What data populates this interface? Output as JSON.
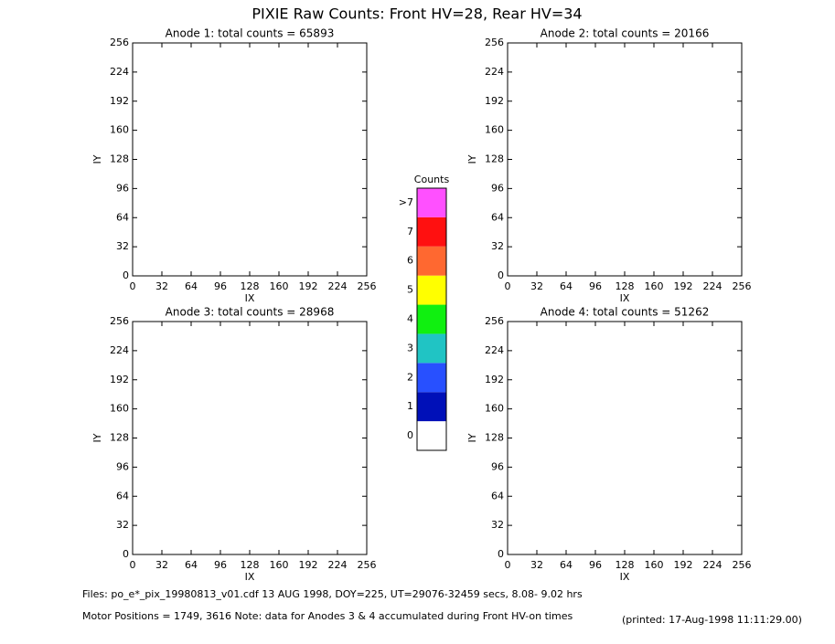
{
  "title": "PIXIE Raw Counts:  Front HV=28, Rear HV=34",
  "chart_data": [
    {
      "type": "heatmap",
      "title": "Anode 1: total counts = 65893",
      "xlabel": "IX",
      "ylabel": "IY",
      "xlim": [
        0,
        256
      ],
      "ylim": [
        0,
        256
      ],
      "xticks": [
        0,
        32,
        64,
        96,
        128,
        160,
        192,
        224,
        256
      ],
      "yticks": [
        0,
        32,
        64,
        96,
        128,
        160,
        192,
        224,
        256
      ]
    },
    {
      "type": "heatmap",
      "title": "Anode 2: total counts = 20166",
      "xlabel": "IX",
      "ylabel": "IY",
      "xlim": [
        0,
        256
      ],
      "ylim": [
        0,
        256
      ],
      "xticks": [
        0,
        32,
        64,
        96,
        128,
        160,
        192,
        224,
        256
      ],
      "yticks": [
        0,
        32,
        64,
        96,
        128,
        160,
        192,
        224,
        256
      ]
    },
    {
      "type": "heatmap",
      "title": "Anode 3: total counts = 28968",
      "xlabel": "IX",
      "ylabel": "IY",
      "xlim": [
        0,
        256
      ],
      "ylim": [
        0,
        256
      ],
      "xticks": [
        0,
        32,
        64,
        96,
        128,
        160,
        192,
        224,
        256
      ],
      "yticks": [
        0,
        32,
        64,
        96,
        128,
        160,
        192,
        224,
        256
      ]
    },
    {
      "type": "heatmap",
      "title": "Anode 4: total counts = 51262",
      "xlabel": "IX",
      "ylabel": "IY",
      "xlim": [
        0,
        256
      ],
      "ylim": [
        0,
        256
      ],
      "xticks": [
        0,
        32,
        64,
        96,
        128,
        160,
        192,
        224,
        256
      ],
      "yticks": [
        0,
        32,
        64,
        96,
        128,
        160,
        192,
        224,
        256
      ]
    }
  ],
  "colorbar": {
    "title": "Counts",
    "labels": [
      "0",
      "1",
      "2",
      "3",
      "4",
      "5",
      "6",
      "7",
      ">7"
    ],
    "colors": [
      "#ffffff",
      "#0010b8",
      "#2850ff",
      "#20c4c4",
      "#10f010",
      "#ffff00",
      "#ff6830",
      "#ff1010",
      "#ff50ff"
    ]
  },
  "footer": {
    "files": "Files: po_e*_pix_19980813_v01.cdf    13 AUG 1998, DOY=225, UT=29076-32459 secs,  8.08- 9.02 hrs",
    "motor": "Motor Positions = 1749, 3616   Note: data for Anodes 3 & 4 accumulated during Front HV-on times",
    "printed": "(printed: 17-Aug-1998 11:11:29.00)"
  }
}
